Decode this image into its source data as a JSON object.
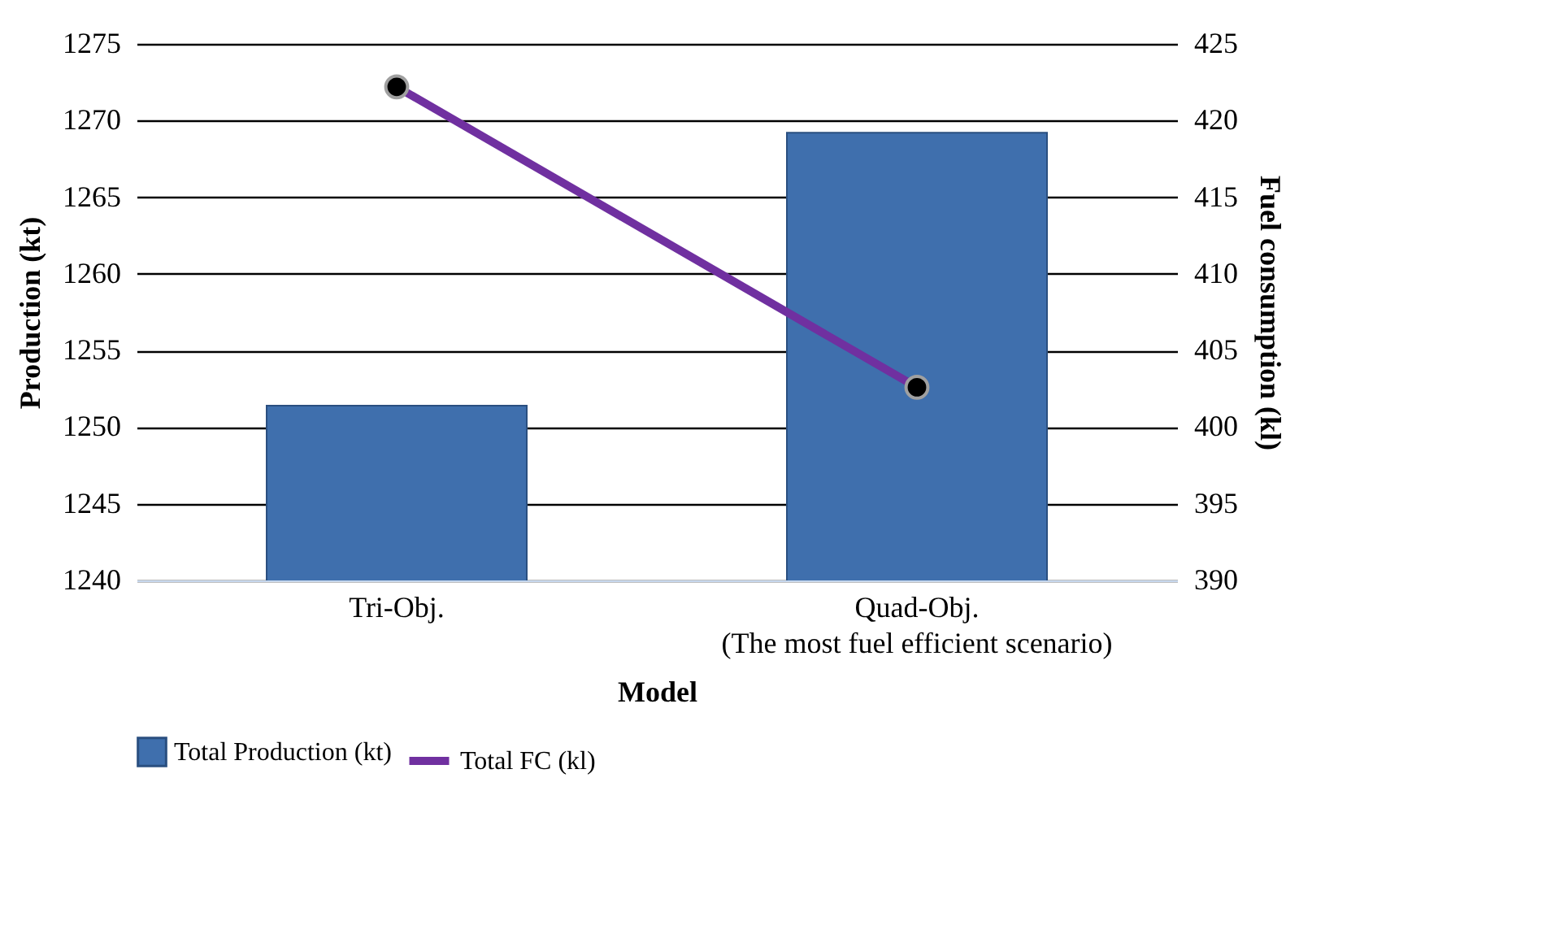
{
  "chart_data": {
    "type": "bar",
    "xlabel": "Model",
    "ylabel": "Production (kt)",
    "y2label": "Fuel consumption (kl)",
    "categories": [
      "Tri-Obj.",
      "Quad-Obj.\n(The most fuel efficient scenario)"
    ],
    "series": [
      {
        "name": "Total Production (kt)",
        "color": "#3f6fad",
        "values": [
          1251.4,
          1269.2
        ]
      },
      {
        "name": "Total FC (kl)",
        "type": "line",
        "axis": "y2",
        "color": "#7030a0",
        "marker": "circle",
        "values": [
          422.2,
          402.6
        ]
      }
    ],
    "ylim": [
      1240,
      1275
    ],
    "yticks": [
      1240,
      1245,
      1250,
      1255,
      1260,
      1265,
      1270,
      1275
    ],
    "y2lim": [
      390,
      425
    ],
    "y2ticks": [
      390,
      395,
      400,
      405,
      410,
      415,
      420,
      425
    ],
    "grid": "y",
    "legend": "bottom"
  }
}
